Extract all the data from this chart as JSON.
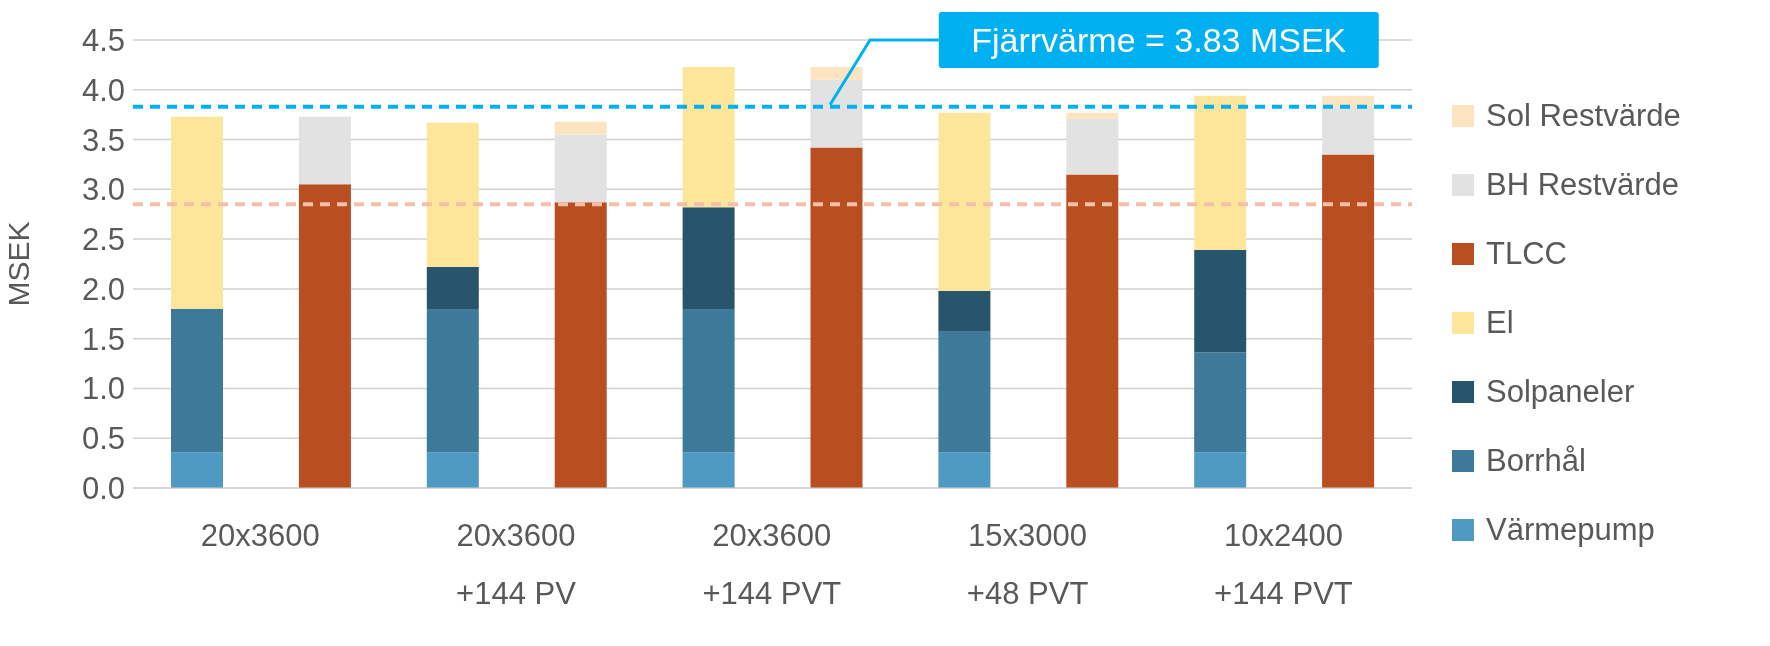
{
  "chart_data": {
    "type": "bar",
    "stacked": true,
    "ylabel": "MSEK",
    "categories": [
      "20x3600",
      null,
      "20x3600\n+144 PV",
      null,
      "20x3600\n+144 PVT",
      null,
      "15x3000\n+48 PVT",
      null,
      "10x2400\n+144 PVT",
      null
    ],
    "series": [
      {
        "name": "Värmepump",
        "color": "#4f9ac2",
        "values": [
          0.36,
          null,
          0.36,
          null,
          0.36,
          null,
          0.36,
          null,
          0.36,
          null
        ]
      },
      {
        "name": "Borrhål",
        "color": "#3d7a99",
        "values": [
          1.44,
          null,
          1.43,
          null,
          1.43,
          null,
          1.21,
          null,
          1.0,
          null
        ]
      },
      {
        "name": "Solpaneler",
        "color": "#28556e",
        "values": [
          0,
          null,
          0.43,
          null,
          1.03,
          null,
          0.41,
          null,
          1.03,
          null
        ]
      },
      {
        "name": "El",
        "color": "#fde699",
        "values": [
          1.93,
          null,
          1.45,
          null,
          1.41,
          null,
          1.79,
          null,
          1.55,
          null
        ]
      },
      {
        "name": "TLCC",
        "color": "#b94f20",
        "values": [
          null,
          3.05,
          null,
          2.87,
          null,
          3.42,
          null,
          3.15,
          null,
          3.35
        ]
      },
      {
        "name": "BH Restvärde",
        "color": "#e2e2e2",
        "values": [
          null,
          0.68,
          null,
          0.68,
          null,
          0.68,
          null,
          0.56,
          null,
          0.47
        ]
      },
      {
        "name": "Sol Restvärde",
        "color": "#fce4c0",
        "values": [
          null,
          0,
          null,
          0.13,
          null,
          0.13,
          null,
          0.06,
          null,
          0.12
        ]
      }
    ],
    "ylim": [
      0,
      4.5
    ],
    "yticks": [
      {
        "value": 0,
        "label": "0.0"
      },
      0.5,
      {
        "value": 1,
        "label": "1.0"
      },
      1.5,
      {
        "value": 2,
        "label": "2.0"
      },
      2.5,
      {
        "value": 3,
        "label": "3.0"
      },
      3.5,
      {
        "value": 4,
        "label": "4.0"
      },
      4.5
    ],
    "ref_lines": [
      {
        "axis": "y",
        "value": 3.83,
        "label": "Fjärrvärme = 3.83 MSEK",
        "color": "#00b0f0",
        "line_style": "dashed"
      },
      {
        "axis": "y",
        "value": 2.85,
        "color": "#f4bfa8",
        "line_style": "dashed"
      }
    ],
    "grid": "y",
    "legend": "right"
  }
}
